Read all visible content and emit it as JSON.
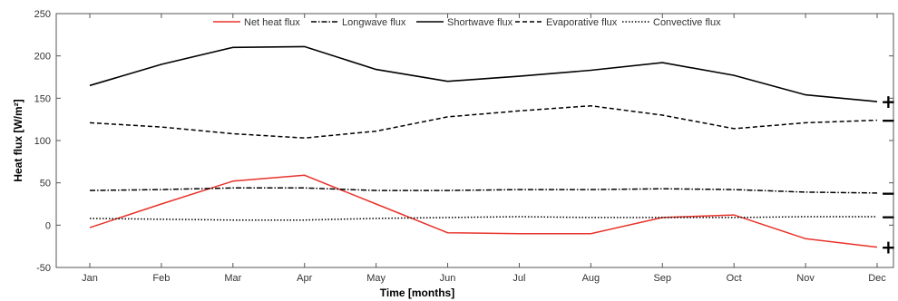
{
  "chart_data": {
    "type": "line",
    "categories": [
      "Jan",
      "Feb",
      "Mar",
      "Apr",
      "May",
      "Jun",
      "Jul",
      "Aug",
      "Sep",
      "Oct",
      "Nov",
      "Dec"
    ],
    "xlabel": "Time [months]",
    "ylabel": "Heat flux [W/m²]",
    "ylim": [
      -50,
      250
    ],
    "yticks": [
      -50,
      0,
      50,
      100,
      150,
      200,
      250
    ],
    "grid": false,
    "legend": "top-center",
    "series": [
      {
        "name": "Net heat flux",
        "color": "#e8332a",
        "dash": "solid",
        "values": [
          -3,
          25,
          52,
          59,
          25,
          -9,
          -10,
          -10,
          9,
          12,
          -16,
          -26
        ],
        "sign": "+"
      },
      {
        "name": "Longwave flux",
        "color": "#000000",
        "dash": "dashdot",
        "values": [
          41,
          42,
          44,
          44,
          41,
          41,
          42,
          42,
          43,
          42,
          39,
          38
        ],
        "sign": "−"
      },
      {
        "name": "Shortwave flux",
        "color": "#000000",
        "dash": "solid",
        "values": [
          165,
          190,
          210,
          211,
          184,
          170,
          176,
          183,
          192,
          177,
          154,
          146
        ],
        "sign": "+"
      },
      {
        "name": "Evaporative flux",
        "color": "#000000",
        "dash": "dashed",
        "values": [
          121,
          116,
          108,
          103,
          111,
          128,
          135,
          141,
          130,
          114,
          121,
          124
        ],
        "sign": "−"
      },
      {
        "name": "Convective flux",
        "color": "#000000",
        "dash": "dotted",
        "values": [
          8,
          7,
          6,
          6,
          8,
          9,
          10,
          9,
          9,
          9,
          10,
          10
        ],
        "sign": "−"
      }
    ]
  }
}
